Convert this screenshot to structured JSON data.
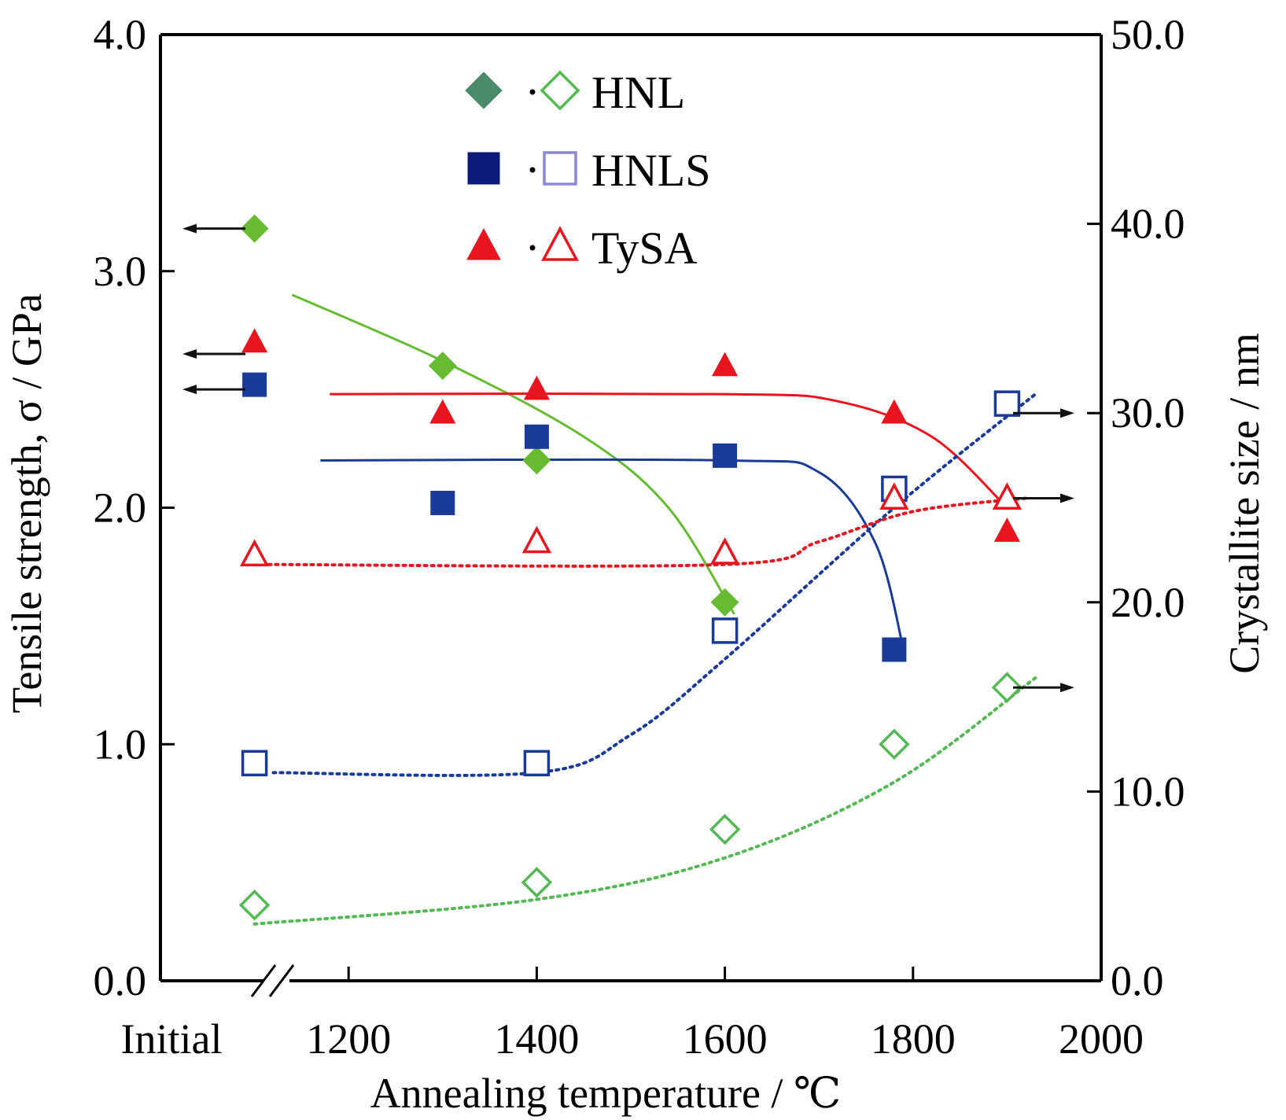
{
  "chart_data": {
    "type": "scatter",
    "title": "",
    "xlabel": "Annealing temperature / ℃",
    "ylabel_left": "Tensile strength, σ / GPa",
    "ylabel_right": "Crystallite size / nm",
    "x_tick_labels": [
      "Initial",
      "1200",
      "1400",
      "1600",
      "1800",
      "2000"
    ],
    "x_break_after": "Initial",
    "xlim": [
      1000,
      2000
    ],
    "ylim_left": [
      0,
      4
    ],
    "ylim_right": [
      0,
      50
    ],
    "y_left_ticks": [
      "0.0",
      "1.0",
      "2.0",
      "3.0",
      "4.0"
    ],
    "y_right_ticks": [
      "0.0",
      "10.0",
      "20.0",
      "30.0",
      "40.0",
      "50.0"
    ],
    "legend": {
      "placement": "top-center",
      "entries": [
        "HNL",
        "HNLS",
        "TySA"
      ]
    },
    "colors": {
      "HNL_filled": "#66bb33",
      "HNL_open": "#55b855",
      "HNL_legend": "#4a8a6a",
      "HNLS": "#1a3a9a",
      "HNLS_legend": "#0d1a7a",
      "TySA": "#e8141e",
      "arrow": "#111111"
    },
    "series": [
      {
        "name": "HNL",
        "axis": "left",
        "marker": "diamond-filled",
        "points": [
          [
            "Initial",
            3.18
          ],
          [
            1300,
            2.6
          ],
          [
            1400,
            2.2
          ],
          [
            1600,
            1.6
          ]
        ],
        "fit": [
          [
            1140,
            2.9
          ],
          [
            1300,
            2.62
          ],
          [
            1450,
            2.3
          ],
          [
            1540,
            2.0
          ],
          [
            1610,
            1.55
          ]
        ],
        "fit_style": "solid"
      },
      {
        "name": "HNLS",
        "axis": "left",
        "marker": "square-filled",
        "points": [
          [
            "Initial",
            2.52
          ],
          [
            1300,
            2.02
          ],
          [
            1400,
            2.3
          ],
          [
            1600,
            2.22
          ],
          [
            1780,
            1.4
          ]
        ],
        "fit": [
          [
            1170,
            2.2
          ],
          [
            1600,
            2.2
          ],
          [
            1700,
            2.15
          ],
          [
            1760,
            1.85
          ],
          [
            1790,
            1.4
          ]
        ],
        "fit_style": "solid"
      },
      {
        "name": "TySA",
        "axis": "left",
        "marker": "triangle-filled",
        "points": [
          [
            "Initial",
            2.7
          ],
          [
            1300,
            2.4
          ],
          [
            1400,
            2.5
          ],
          [
            1600,
            2.6
          ],
          [
            1780,
            2.4
          ],
          [
            1900,
            1.9
          ]
        ],
        "fit": [
          [
            1180,
            2.48
          ],
          [
            1600,
            2.48
          ],
          [
            1720,
            2.45
          ],
          [
            1820,
            2.3
          ],
          [
            1900,
            2.0
          ]
        ],
        "fit_style": "solid"
      },
      {
        "name": "HNL",
        "axis": "right",
        "marker": "diamond-open",
        "points": [
          [
            "Initial",
            4.0
          ],
          [
            1400,
            5.2
          ],
          [
            1600,
            8.0
          ],
          [
            1780,
            12.5
          ],
          [
            1900,
            15.5
          ]
        ],
        "fit": [
          [
            1100,
            3.0
          ],
          [
            1400,
            4.3
          ],
          [
            1600,
            6.5
          ],
          [
            1780,
            10.5
          ],
          [
            1930,
            16.0
          ]
        ],
        "fit_style": "dotted"
      },
      {
        "name": "HNLS",
        "axis": "right",
        "marker": "square-open",
        "points": [
          [
            "Initial",
            11.5
          ],
          [
            1400,
            11.5
          ],
          [
            1600,
            18.5
          ],
          [
            1780,
            26.0
          ],
          [
            1900,
            30.5
          ]
        ],
        "fit": [
          [
            1120,
            11.0
          ],
          [
            1400,
            11.0
          ],
          [
            1500,
            13.0
          ],
          [
            1600,
            17.0
          ],
          [
            1780,
            25.0
          ],
          [
            1930,
            31.0
          ]
        ],
        "fit_style": "dotted"
      },
      {
        "name": "TySA",
        "axis": "right",
        "marker": "triangle-open",
        "points": [
          [
            "Initial",
            22.5
          ],
          [
            1400,
            23.2
          ],
          [
            1600,
            22.6
          ],
          [
            1780,
            25.5
          ],
          [
            1900,
            25.5
          ]
        ],
        "fit": [
          [
            1100,
            22.0
          ],
          [
            1600,
            22.0
          ],
          [
            1700,
            23.2
          ],
          [
            1800,
            24.8
          ],
          [
            1920,
            25.5
          ]
        ],
        "fit_style": "dotted"
      }
    ],
    "axis_arrows": [
      {
        "axis": "left",
        "direction": "left",
        "value": 3.18
      },
      {
        "axis": "left",
        "direction": "left",
        "value": 2.65
      },
      {
        "axis": "left",
        "direction": "left",
        "value": 2.5
      },
      {
        "axis": "right",
        "direction": "right",
        "value": 30.0
      },
      {
        "axis": "right",
        "direction": "right",
        "value": 25.5
      },
      {
        "axis": "right",
        "direction": "right",
        "value": 15.5
      }
    ]
  }
}
